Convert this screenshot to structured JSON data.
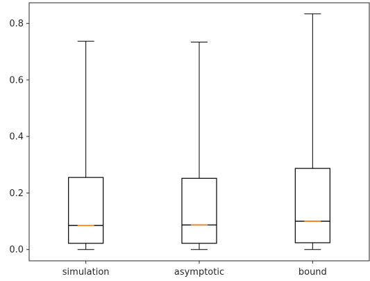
{
  "chart_data": {
    "type": "boxplot",
    "title": "",
    "xlabel": "",
    "ylabel": "",
    "categories": [
      "simulation",
      "asymptotic",
      "bound"
    ],
    "boxes": [
      {
        "whislo": 0.0,
        "q1": 0.022,
        "med": 0.085,
        "q3": 0.255,
        "whishi": 0.737
      },
      {
        "whislo": 0.0,
        "q1": 0.022,
        "med": 0.087,
        "q3": 0.252,
        "whishi": 0.734
      },
      {
        "whislo": 0.0,
        "q1": 0.024,
        "med": 0.1,
        "q3": 0.287,
        "whishi": 0.834
      }
    ],
    "ylim": [
      -0.04,
      0.873
    ],
    "yticks": [
      0.0,
      0.2,
      0.4,
      0.6,
      0.8
    ],
    "ytick_labels": [
      "0.0",
      "0.2",
      "0.4",
      "0.6",
      "0.8"
    ],
    "grid": false,
    "colors": {
      "box": "#000000",
      "median": "#ff7f0e",
      "axis": "#262626"
    }
  }
}
